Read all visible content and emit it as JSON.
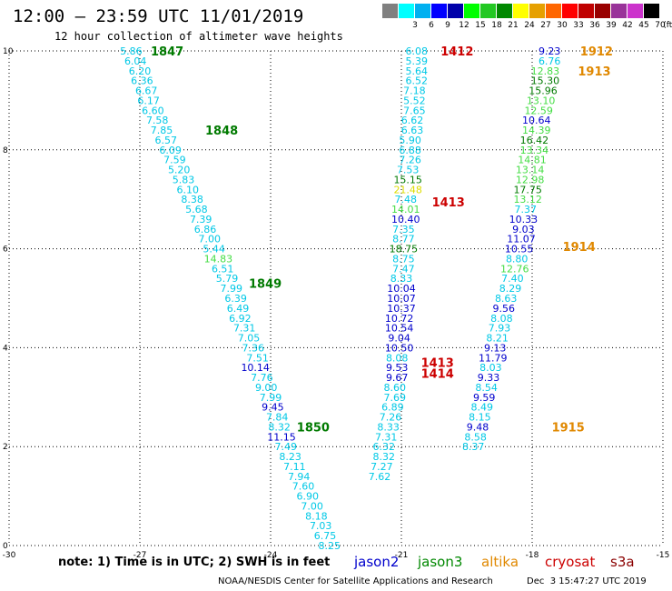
{
  "title": "12:00 — 23:59 UTC 11/01/2019",
  "subtitle": "12 hour collection of altimeter wave heights",
  "legend": {
    "unit": "(ft)",
    "labels": [
      "",
      "3",
      "6",
      "9",
      "12",
      "15",
      "18",
      "21",
      "24",
      "27",
      "30",
      "33",
      "36",
      "39",
      "42",
      "45",
      "70"
    ],
    "colors": [
      "#808080",
      "#00ffff",
      "#00b0f0",
      "#0000ff",
      "#0000aa",
      "#00ff00",
      "#22c822",
      "#008800",
      "#ffff00",
      "#e6a000",
      "#ff6600",
      "#ff0000",
      "#c00000",
      "#990000",
      "#993399",
      "#cc33cc",
      "#000000"
    ]
  },
  "note": "note: 1) Time is in UTC; 2) SWH is in feet",
  "satellites": [
    {
      "name": "jason2",
      "color": "#0000cc"
    },
    {
      "name": "jason3",
      "color": "#008800"
    },
    {
      "name": "altika",
      "color": "#e08800"
    },
    {
      "name": "cryosat",
      "color": "#cc0000"
    },
    {
      "name": "s3a",
      "color": "#8b0000"
    }
  ],
  "credit": "NOAA/NESDIS Center for Satellite Applications and Research",
  "generated": "Dec  3 15:47:27 UTC 2019",
  "chart_data": {
    "type": "scatter",
    "xlim": [
      -30,
      -15
    ],
    "ylim": [
      0,
      10
    ],
    "x_ticks": [
      "-30",
      "-27",
      "-24",
      "-21",
      "-18",
      "-15"
    ],
    "y_ticks": [
      "0",
      "2",
      "4",
      "6",
      "8",
      "10"
    ],
    "grid": true,
    "value_colors": {
      "cyan": "#00c8e6",
      "green": "#44dd44",
      "dark_green": "#007a00",
      "blue": "#0000cc",
      "yellow": "#dddd00"
    },
    "tracks": [
      {
        "name": "1847",
        "color": "#007a00",
        "x": -26.75,
        "y": 10.0
      },
      {
        "name": "1848",
        "color": "#007a00",
        "x": -25.5,
        "y": 8.4
      },
      {
        "name": "1849",
        "color": "#007a00",
        "x": -24.5,
        "y": 5.3
      },
      {
        "name": "1850",
        "color": "#007a00",
        "x": -23.4,
        "y": 2.4
      },
      {
        "name": "1412",
        "color": "#cc0000",
        "x": -20.1,
        "y": 10.0
      },
      {
        "name": "1413",
        "color": "#cc0000",
        "x": -20.3,
        "y": 6.95
      },
      {
        "name": "1413",
        "color": "#cc0000",
        "x": -20.55,
        "y": 3.7
      },
      {
        "name": "1414",
        "color": "#cc0000",
        "x": -20.55,
        "y": 3.48
      },
      {
        "name": "1912",
        "color": "#e08800",
        "x": -16.9,
        "y": 10.0
      },
      {
        "name": "1913",
        "color": "#e08800",
        "x": -16.95,
        "y": 9.6
      },
      {
        "name": "1914",
        "color": "#e08800",
        "x": -17.3,
        "y": 6.05
      },
      {
        "name": "1915",
        "color": "#e08800",
        "x": -17.55,
        "y": 2.4
      }
    ],
    "series": [
      {
        "name": "1847-1850",
        "points": [
          {
            "x": -27.2,
            "y": 10.0,
            "v": "5.86",
            "c": "cyan"
          },
          {
            "x": -27.1,
            "y": 9.8,
            "v": "6.04",
            "c": "cyan"
          },
          {
            "x": -27.0,
            "y": 9.6,
            "v": "6.20",
            "c": "cyan"
          },
          {
            "x": -26.95,
            "y": 9.4,
            "v": "6.36",
            "c": "cyan"
          },
          {
            "x": -26.85,
            "y": 9.2,
            "v": "6.67",
            "c": "cyan"
          },
          {
            "x": -26.8,
            "y": 9.0,
            "v": "6.17",
            "c": "cyan"
          },
          {
            "x": -26.7,
            "y": 8.8,
            "v": "6.60",
            "c": "cyan"
          },
          {
            "x": -26.6,
            "y": 8.6,
            "v": "7.58",
            "c": "cyan"
          },
          {
            "x": -26.5,
            "y": 8.4,
            "v": "7.85",
            "c": "cyan"
          },
          {
            "x": -26.4,
            "y": 8.2,
            "v": "6.57",
            "c": "cyan"
          },
          {
            "x": -26.3,
            "y": 8.0,
            "v": "6.09",
            "c": "cyan"
          },
          {
            "x": -26.2,
            "y": 7.8,
            "v": "7.59",
            "c": "cyan"
          },
          {
            "x": -26.1,
            "y": 7.6,
            "v": "5.20",
            "c": "cyan"
          },
          {
            "x": -26.0,
            "y": 7.4,
            "v": "5.83",
            "c": "cyan"
          },
          {
            "x": -25.9,
            "y": 7.2,
            "v": "6.10",
            "c": "cyan"
          },
          {
            "x": -25.8,
            "y": 7.0,
            "v": "8.38",
            "c": "cyan"
          },
          {
            "x": -25.7,
            "y": 6.8,
            "v": "5.68",
            "c": "cyan"
          },
          {
            "x": -25.6,
            "y": 6.6,
            "v": "7.39",
            "c": "cyan"
          },
          {
            "x": -25.5,
            "y": 6.4,
            "v": "6.86",
            "c": "cyan"
          },
          {
            "x": -25.4,
            "y": 6.2,
            "v": "7.00",
            "c": "cyan"
          },
          {
            "x": -25.3,
            "y": 6.0,
            "v": "5.44",
            "c": "cyan"
          },
          {
            "x": -25.2,
            "y": 5.8,
            "v": "14.83",
            "c": "green"
          },
          {
            "x": -25.1,
            "y": 5.6,
            "v": "6.51",
            "c": "cyan"
          },
          {
            "x": -25.0,
            "y": 5.4,
            "v": "5.79",
            "c": "cyan"
          },
          {
            "x": -24.9,
            "y": 5.2,
            "v": "7.99",
            "c": "cyan"
          },
          {
            "x": -24.8,
            "y": 5.0,
            "v": "6.39",
            "c": "cyan"
          },
          {
            "x": -24.75,
            "y": 4.8,
            "v": "6.49",
            "c": "cyan"
          },
          {
            "x": -24.7,
            "y": 4.6,
            "v": "6.92",
            "c": "cyan"
          },
          {
            "x": -24.6,
            "y": 4.4,
            "v": "7.31",
            "c": "cyan"
          },
          {
            "x": -24.5,
            "y": 4.2,
            "v": "7.05",
            "c": "cyan"
          },
          {
            "x": -24.4,
            "y": 4.0,
            "v": "7.36",
            "c": "cyan"
          },
          {
            "x": -24.3,
            "y": 3.8,
            "v": "7.51",
            "c": "cyan"
          },
          {
            "x": -24.35,
            "y": 3.6,
            "v": "10.14",
            "c": "blue"
          },
          {
            "x": -24.2,
            "y": 3.4,
            "v": "7.76",
            "c": "cyan"
          },
          {
            "x": -24.1,
            "y": 3.2,
            "v": "9.00",
            "c": "cyan"
          },
          {
            "x": -24.0,
            "y": 3.0,
            "v": "7.99",
            "c": "cyan"
          },
          {
            "x": -23.95,
            "y": 2.8,
            "v": "9.45",
            "c": "blue"
          },
          {
            "x": -23.85,
            "y": 2.6,
            "v": "7.84",
            "c": "cyan"
          },
          {
            "x": -23.8,
            "y": 2.4,
            "v": "8.32",
            "c": "cyan"
          },
          {
            "x": -23.75,
            "y": 2.2,
            "v": "11.15",
            "c": "blue"
          },
          {
            "x": -23.65,
            "y": 2.0,
            "v": "7.49",
            "c": "cyan"
          },
          {
            "x": -23.55,
            "y": 1.8,
            "v": "8.23",
            "c": "cyan"
          },
          {
            "x": -23.45,
            "y": 1.6,
            "v": "7.11",
            "c": "cyan"
          },
          {
            "x": -23.35,
            "y": 1.4,
            "v": "7.94",
            "c": "cyan"
          },
          {
            "x": -23.25,
            "y": 1.2,
            "v": "7.60",
            "c": "cyan"
          },
          {
            "x": -23.15,
            "y": 1.0,
            "v": "6.90",
            "c": "cyan"
          },
          {
            "x": -23.05,
            "y": 0.8,
            "v": "7.00",
            "c": "cyan"
          },
          {
            "x": -22.95,
            "y": 0.6,
            "v": "8.18",
            "c": "cyan"
          },
          {
            "x": -22.85,
            "y": 0.4,
            "v": "7.03",
            "c": "cyan"
          },
          {
            "x": -22.75,
            "y": 0.2,
            "v": "6.75",
            "c": "cyan"
          },
          {
            "x": -22.65,
            "y": 0.0,
            "v": "8.25",
            "c": "cyan"
          }
        ]
      },
      {
        "name": "1412-1414",
        "points": [
          {
            "x": -20.65,
            "y": 10.0,
            "v": "6.08",
            "c": "cyan"
          },
          {
            "x": -20.65,
            "y": 9.8,
            "v": "5.39",
            "c": "cyan"
          },
          {
            "x": -20.65,
            "y": 9.6,
            "v": "5.64",
            "c": "cyan"
          },
          {
            "x": -20.65,
            "y": 9.4,
            "v": "6.52",
            "c": "cyan"
          },
          {
            "x": -20.7,
            "y": 9.2,
            "v": "7.18",
            "c": "cyan"
          },
          {
            "x": -20.7,
            "y": 9.0,
            "v": "5.52",
            "c": "cyan"
          },
          {
            "x": -20.7,
            "y": 8.8,
            "v": "7.65",
            "c": "cyan"
          },
          {
            "x": -20.75,
            "y": 8.6,
            "v": "6.62",
            "c": "cyan"
          },
          {
            "x": -20.75,
            "y": 8.4,
            "v": "6.63",
            "c": "cyan"
          },
          {
            "x": -20.8,
            "y": 8.2,
            "v": "5.90",
            "c": "cyan"
          },
          {
            "x": -20.8,
            "y": 8.0,
            "v": "6.88",
            "c": "cyan"
          },
          {
            "x": -20.8,
            "y": 7.8,
            "v": "7.26",
            "c": "cyan"
          },
          {
            "x": -20.85,
            "y": 7.6,
            "v": "7.53",
            "c": "cyan"
          },
          {
            "x": -20.85,
            "y": 7.4,
            "v": "15.15",
            "c": "dark_green"
          },
          {
            "x": -20.85,
            "y": 7.2,
            "v": "21.48",
            "c": "yellow"
          },
          {
            "x": -20.9,
            "y": 7.0,
            "v": "7.48",
            "c": "cyan"
          },
          {
            "x": -20.9,
            "y": 6.8,
            "v": "14.01",
            "c": "green"
          },
          {
            "x": -20.9,
            "y": 6.6,
            "v": "10.40",
            "c": "blue"
          },
          {
            "x": -20.95,
            "y": 6.4,
            "v": "7.35",
            "c": "cyan"
          },
          {
            "x": -20.95,
            "y": 6.2,
            "v": "8.77",
            "c": "cyan"
          },
          {
            "x": -20.95,
            "y": 6.0,
            "v": "18.75",
            "c": "dark_green"
          },
          {
            "x": -20.95,
            "y": 5.8,
            "v": "8.75",
            "c": "cyan"
          },
          {
            "x": -20.95,
            "y": 5.6,
            "v": "7.47",
            "c": "cyan"
          },
          {
            "x": -21.0,
            "y": 5.4,
            "v": "8.33",
            "c": "cyan"
          },
          {
            "x": -21.0,
            "y": 5.2,
            "v": "10.04",
            "c": "blue"
          },
          {
            "x": -21.0,
            "y": 5.0,
            "v": "10.07",
            "c": "blue"
          },
          {
            "x": -21.0,
            "y": 4.8,
            "v": "10.37",
            "c": "blue"
          },
          {
            "x": -21.05,
            "y": 4.6,
            "v": "10.72",
            "c": "blue"
          },
          {
            "x": -21.05,
            "y": 4.4,
            "v": "10.54",
            "c": "blue"
          },
          {
            "x": -21.05,
            "y": 4.2,
            "v": "9.04",
            "c": "blue"
          },
          {
            "x": -21.05,
            "y": 4.0,
            "v": "10.50",
            "c": "blue"
          },
          {
            "x": -21.1,
            "y": 3.8,
            "v": "8.08",
            "c": "cyan"
          },
          {
            "x": -21.1,
            "y": 3.6,
            "v": "9.53",
            "c": "blue"
          },
          {
            "x": -21.1,
            "y": 3.4,
            "v": "9.67",
            "c": "blue"
          },
          {
            "x": -21.15,
            "y": 3.2,
            "v": "8.60",
            "c": "cyan"
          },
          {
            "x": -21.15,
            "y": 3.0,
            "v": "7.69",
            "c": "cyan"
          },
          {
            "x": -21.2,
            "y": 2.8,
            "v": "6.89",
            "c": "cyan"
          },
          {
            "x": -21.25,
            "y": 2.6,
            "v": "7.26",
            "c": "cyan"
          },
          {
            "x": -21.3,
            "y": 2.4,
            "v": "8.33",
            "c": "cyan"
          },
          {
            "x": -21.35,
            "y": 2.2,
            "v": "7.31",
            "c": "cyan"
          },
          {
            "x": -21.4,
            "y": 2.0,
            "v": "6.32",
            "c": "cyan"
          },
          {
            "x": -21.4,
            "y": 1.8,
            "v": "8.32",
            "c": "cyan"
          },
          {
            "x": -21.45,
            "y": 1.6,
            "v": "7.27",
            "c": "cyan"
          },
          {
            "x": -21.5,
            "y": 1.4,
            "v": "7.62",
            "c": "cyan"
          }
        ]
      },
      {
        "name": "1912-1915",
        "points": [
          {
            "x": -17.6,
            "y": 10.0,
            "v": "9.23",
            "c": "blue"
          },
          {
            "x": -17.6,
            "y": 9.8,
            "v": "6.76",
            "c": "cyan"
          },
          {
            "x": -17.7,
            "y": 9.6,
            "v": "12.83",
            "c": "green"
          },
          {
            "x": -17.7,
            "y": 9.4,
            "v": "15.30",
            "c": "dark_green"
          },
          {
            "x": -17.75,
            "y": 9.2,
            "v": "15.96",
            "c": "dark_green"
          },
          {
            "x": -17.8,
            "y": 9.0,
            "v": "13.10",
            "c": "green"
          },
          {
            "x": -17.85,
            "y": 8.8,
            "v": "12.59",
            "c": "green"
          },
          {
            "x": -17.9,
            "y": 8.6,
            "v": "10.64",
            "c": "blue"
          },
          {
            "x": -17.9,
            "y": 8.4,
            "v": "14.39",
            "c": "green"
          },
          {
            "x": -17.95,
            "y": 8.2,
            "v": "16.42",
            "c": "dark_green"
          },
          {
            "x": -17.95,
            "y": 8.0,
            "v": "13.34",
            "c": "green"
          },
          {
            "x": -18.0,
            "y": 7.8,
            "v": "14.81",
            "c": "green"
          },
          {
            "x": -18.05,
            "y": 7.6,
            "v": "13.14",
            "c": "green"
          },
          {
            "x": -18.05,
            "y": 7.4,
            "v": "12.98",
            "c": "green"
          },
          {
            "x": -18.1,
            "y": 7.2,
            "v": "17.75",
            "c": "dark_green"
          },
          {
            "x": -18.1,
            "y": 7.0,
            "v": "13.12",
            "c": "green"
          },
          {
            "x": -18.15,
            "y": 6.8,
            "v": "7.37",
            "c": "cyan"
          },
          {
            "x": -18.2,
            "y": 6.6,
            "v": "10.33",
            "c": "blue"
          },
          {
            "x": -18.2,
            "y": 6.4,
            "v": "9.03",
            "c": "blue"
          },
          {
            "x": -18.25,
            "y": 6.2,
            "v": "11.07",
            "c": "blue"
          },
          {
            "x": -18.3,
            "y": 6.0,
            "v": "10.55",
            "c": "blue"
          },
          {
            "x": -18.35,
            "y": 5.8,
            "v": "8.80",
            "c": "cyan"
          },
          {
            "x": -18.4,
            "y": 5.6,
            "v": "12.76",
            "c": "green"
          },
          {
            "x": -18.45,
            "y": 5.4,
            "v": "7.40",
            "c": "cyan"
          },
          {
            "x": -18.5,
            "y": 5.2,
            "v": "8.29",
            "c": "cyan"
          },
          {
            "x": -18.6,
            "y": 5.0,
            "v": "8.63",
            "c": "cyan"
          },
          {
            "x": -18.65,
            "y": 4.8,
            "v": "9.56",
            "c": "blue"
          },
          {
            "x": -18.7,
            "y": 4.6,
            "v": "8.08",
            "c": "cyan"
          },
          {
            "x": -18.75,
            "y": 4.4,
            "v": "7.93",
            "c": "cyan"
          },
          {
            "x": -18.8,
            "y": 4.2,
            "v": "8.21",
            "c": "cyan"
          },
          {
            "x": -18.85,
            "y": 4.0,
            "v": "9.13",
            "c": "blue"
          },
          {
            "x": -18.9,
            "y": 3.8,
            "v": "11.79",
            "c": "blue"
          },
          {
            "x": -18.95,
            "y": 3.6,
            "v": "8.03",
            "c": "cyan"
          },
          {
            "x": -19.0,
            "y": 3.4,
            "v": "9.33",
            "c": "blue"
          },
          {
            "x": -19.05,
            "y": 3.2,
            "v": "8.54",
            "c": "cyan"
          },
          {
            "x": -19.1,
            "y": 3.0,
            "v": "9.59",
            "c": "blue"
          },
          {
            "x": -19.15,
            "y": 2.8,
            "v": "8.49",
            "c": "cyan"
          },
          {
            "x": -19.2,
            "y": 2.6,
            "v": "8.15",
            "c": "cyan"
          },
          {
            "x": -19.25,
            "y": 2.4,
            "v": "9.48",
            "c": "blue"
          },
          {
            "x": -19.3,
            "y": 2.2,
            "v": "8.58",
            "c": "cyan"
          },
          {
            "x": -19.35,
            "y": 2.0,
            "v": "8.37",
            "c": "cyan"
          }
        ]
      }
    ]
  }
}
